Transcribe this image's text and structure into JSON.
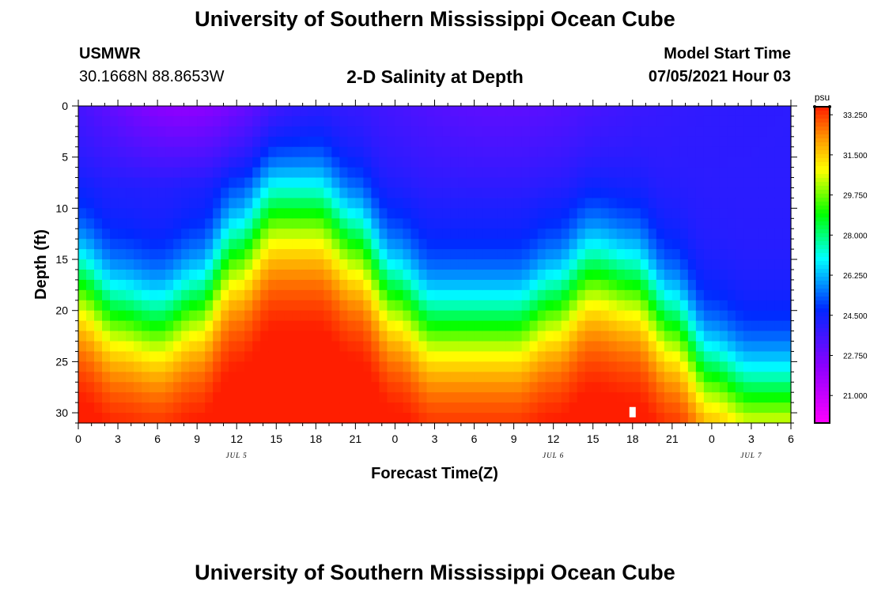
{
  "header": {
    "title": "University of Southern Mississippi Ocean Cube",
    "station": "USMWR",
    "coords": "30.1668N  88.8653W",
    "model_start_label": "Model Start Time",
    "model_start_value": "07/05/2021 Hour 03"
  },
  "footer": {
    "title": "University of Southern Mississippi Ocean Cube"
  },
  "colors": {
    "background": "#ffffff",
    "axis": "#000000",
    "marker": "#ffffff"
  },
  "chart_data": {
    "type": "heatmap",
    "title": "2-D Salinity at Depth",
    "xlabel": "Forecast Time(Z)",
    "ylabel": "Depth (ft)",
    "x_hours_range": [
      0,
      54
    ],
    "ylim": [
      0,
      31
    ],
    "x_tick_labels": [
      "0",
      "3",
      "6",
      "9",
      "12",
      "15",
      "18",
      "21",
      "0",
      "3",
      "6",
      "9",
      "12",
      "15",
      "18",
      "21",
      "0",
      "3",
      "6"
    ],
    "y_tick_labels": [
      "0",
      "5",
      "10",
      "15",
      "20",
      "25",
      "30"
    ],
    "y_tick_values": [
      0,
      5,
      10,
      15,
      20,
      25,
      30
    ],
    "day_labels": [
      {
        "label": "JUL 5",
        "hour": 12
      },
      {
        "label": "JUL 6",
        "hour": 36
      },
      {
        "label": "JUL 7",
        "hour": 51
      }
    ],
    "colorbar": {
      "unit": "psu",
      "min": 19.8,
      "max": 33.6,
      "tick_labels": [
        "33.250",
        "31.500",
        "29.750",
        "28.000",
        "26.250",
        "24.500",
        "22.750",
        "21.000"
      ],
      "tick_values": [
        33.25,
        31.5,
        29.75,
        28.0,
        26.25,
        24.5,
        22.75,
        21.0
      ]
    },
    "surface_salinity_psu": 24.0,
    "bottom_salinity_psu": 33.2,
    "halocline_depth_ft": {
      "hours": [
        0,
        3,
        6,
        9,
        12,
        15,
        18,
        21,
        24,
        27,
        30,
        33,
        36,
        39,
        42,
        45,
        48,
        51,
        54
      ],
      "depths": [
        17,
        20,
        21,
        19,
        14,
        10,
        10,
        13,
        18,
        21,
        21,
        21,
        19,
        16,
        17,
        21,
        26,
        28,
        28
      ]
    },
    "marker": {
      "hour": 42,
      "depth_ft": 29.9
    }
  }
}
